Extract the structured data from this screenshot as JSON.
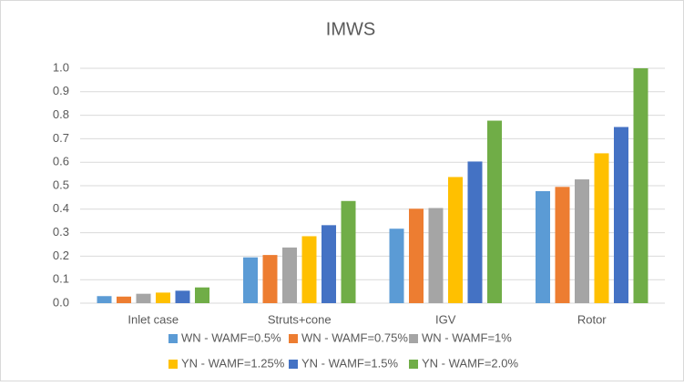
{
  "chart_data": {
    "type": "bar",
    "title": "IMWS",
    "categories": [
      "Inlet case",
      "Struts+cone",
      "IGV",
      "Rotor"
    ],
    "series": [
      {
        "name": "WN - WAMF=0.5%",
        "color": "#5b9bd5",
        "values": [
          0.03,
          0.195,
          0.317,
          0.477
        ]
      },
      {
        "name": "WN - WAMF=0.75%",
        "color": "#ed7d31",
        "values": [
          0.028,
          0.205,
          0.402,
          0.495
        ]
      },
      {
        "name": "WN - WAMF=1%",
        "color": "#a5a5a5",
        "values": [
          0.04,
          0.237,
          0.405,
          0.527
        ]
      },
      {
        "name": "YN - WAMF=1.25%",
        "color": "#ffc000",
        "values": [
          0.045,
          0.285,
          0.537,
          0.638
        ]
      },
      {
        "name": "YN - WAMF=1.5%",
        "color": "#4472c4",
        "values": [
          0.053,
          0.332,
          0.603,
          0.75
        ]
      },
      {
        "name": "YN - WAMF=2.0%",
        "color": "#70ad47",
        "values": [
          0.067,
          0.435,
          0.777,
          1.0
        ]
      }
    ],
    "ylim": [
      0,
      1
    ],
    "yticks": [
      {
        "value": 0,
        "label": "0.0"
      },
      0.1,
      0.2,
      0.3,
      0.4,
      0.5,
      0.6,
      0.7,
      0.8,
      0.9,
      {
        "value": 1,
        "label": "1.0"
      }
    ],
    "grid": true,
    "legend": "bottom"
  }
}
